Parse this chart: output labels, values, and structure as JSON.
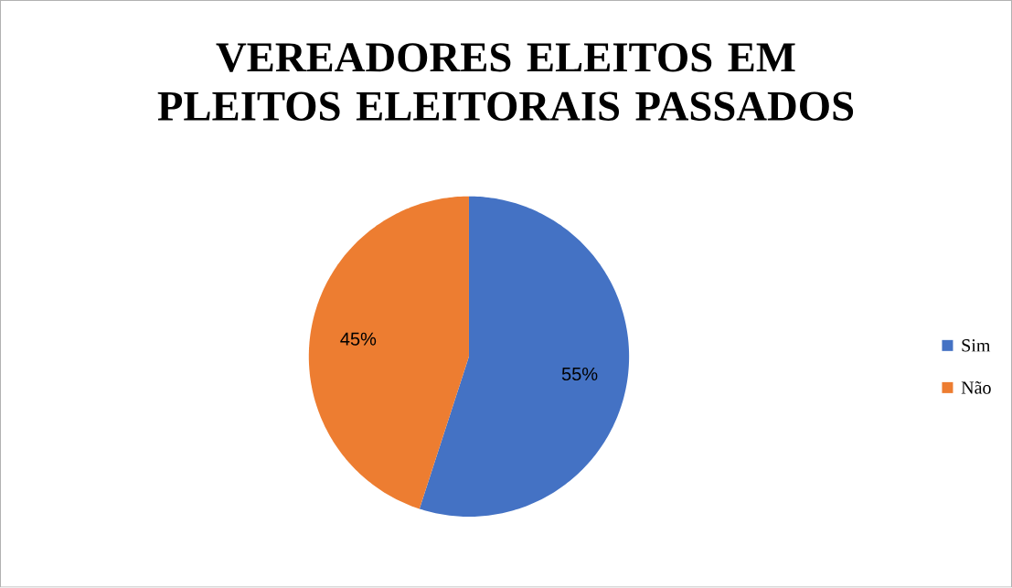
{
  "chart_data": {
    "type": "pie",
    "title": "VEREADORES ELEITOS EM PLEITOS ELEITORAIS PASSADOS",
    "categories": [
      "Sim",
      "Não"
    ],
    "values": [
      55,
      45
    ],
    "colors": [
      "#4472c4",
      "#ed7d31"
    ],
    "value_labels": [
      "55%",
      "45%"
    ],
    "legend": "right"
  }
}
